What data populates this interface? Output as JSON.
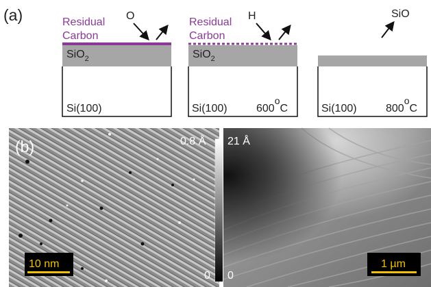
{
  "figure": {
    "panel_a": {
      "label": "(a)",
      "step1": {
        "layer_label_line1": "Residual",
        "layer_label_line2": "Carbon",
        "reactant": "O",
        "oxide_main": "SiO",
        "oxide_sub": "2",
        "substrate": "Si(100)"
      },
      "step2": {
        "layer_label_line1": "Residual",
        "layer_label_line2": "Carbon",
        "reactant": "H",
        "oxide_main": "SiO",
        "oxide_sub": "2",
        "substrate": "Si(100)",
        "temp_value": "600",
        "temp_degree": "o",
        "temp_unit": "C"
      },
      "step3": {
        "product": "SiO",
        "substrate": "Si(100)",
        "temp_value": "800",
        "temp_degree": "o",
        "temp_unit": "C"
      }
    },
    "panel_b": {
      "label": "(b)",
      "left_scale_max": "0.8 Å",
      "left_scale_min": "0",
      "right_scale_max": "21 Å",
      "right_scale_min": "0",
      "left_scalebar": "10 nm",
      "right_scalebar": "1 µm"
    },
    "colors": {
      "carbon_purple": "#8a3a96",
      "oxide_gray": "#a6a6a6",
      "scalebar_yellow": "#f2c200"
    }
  }
}
